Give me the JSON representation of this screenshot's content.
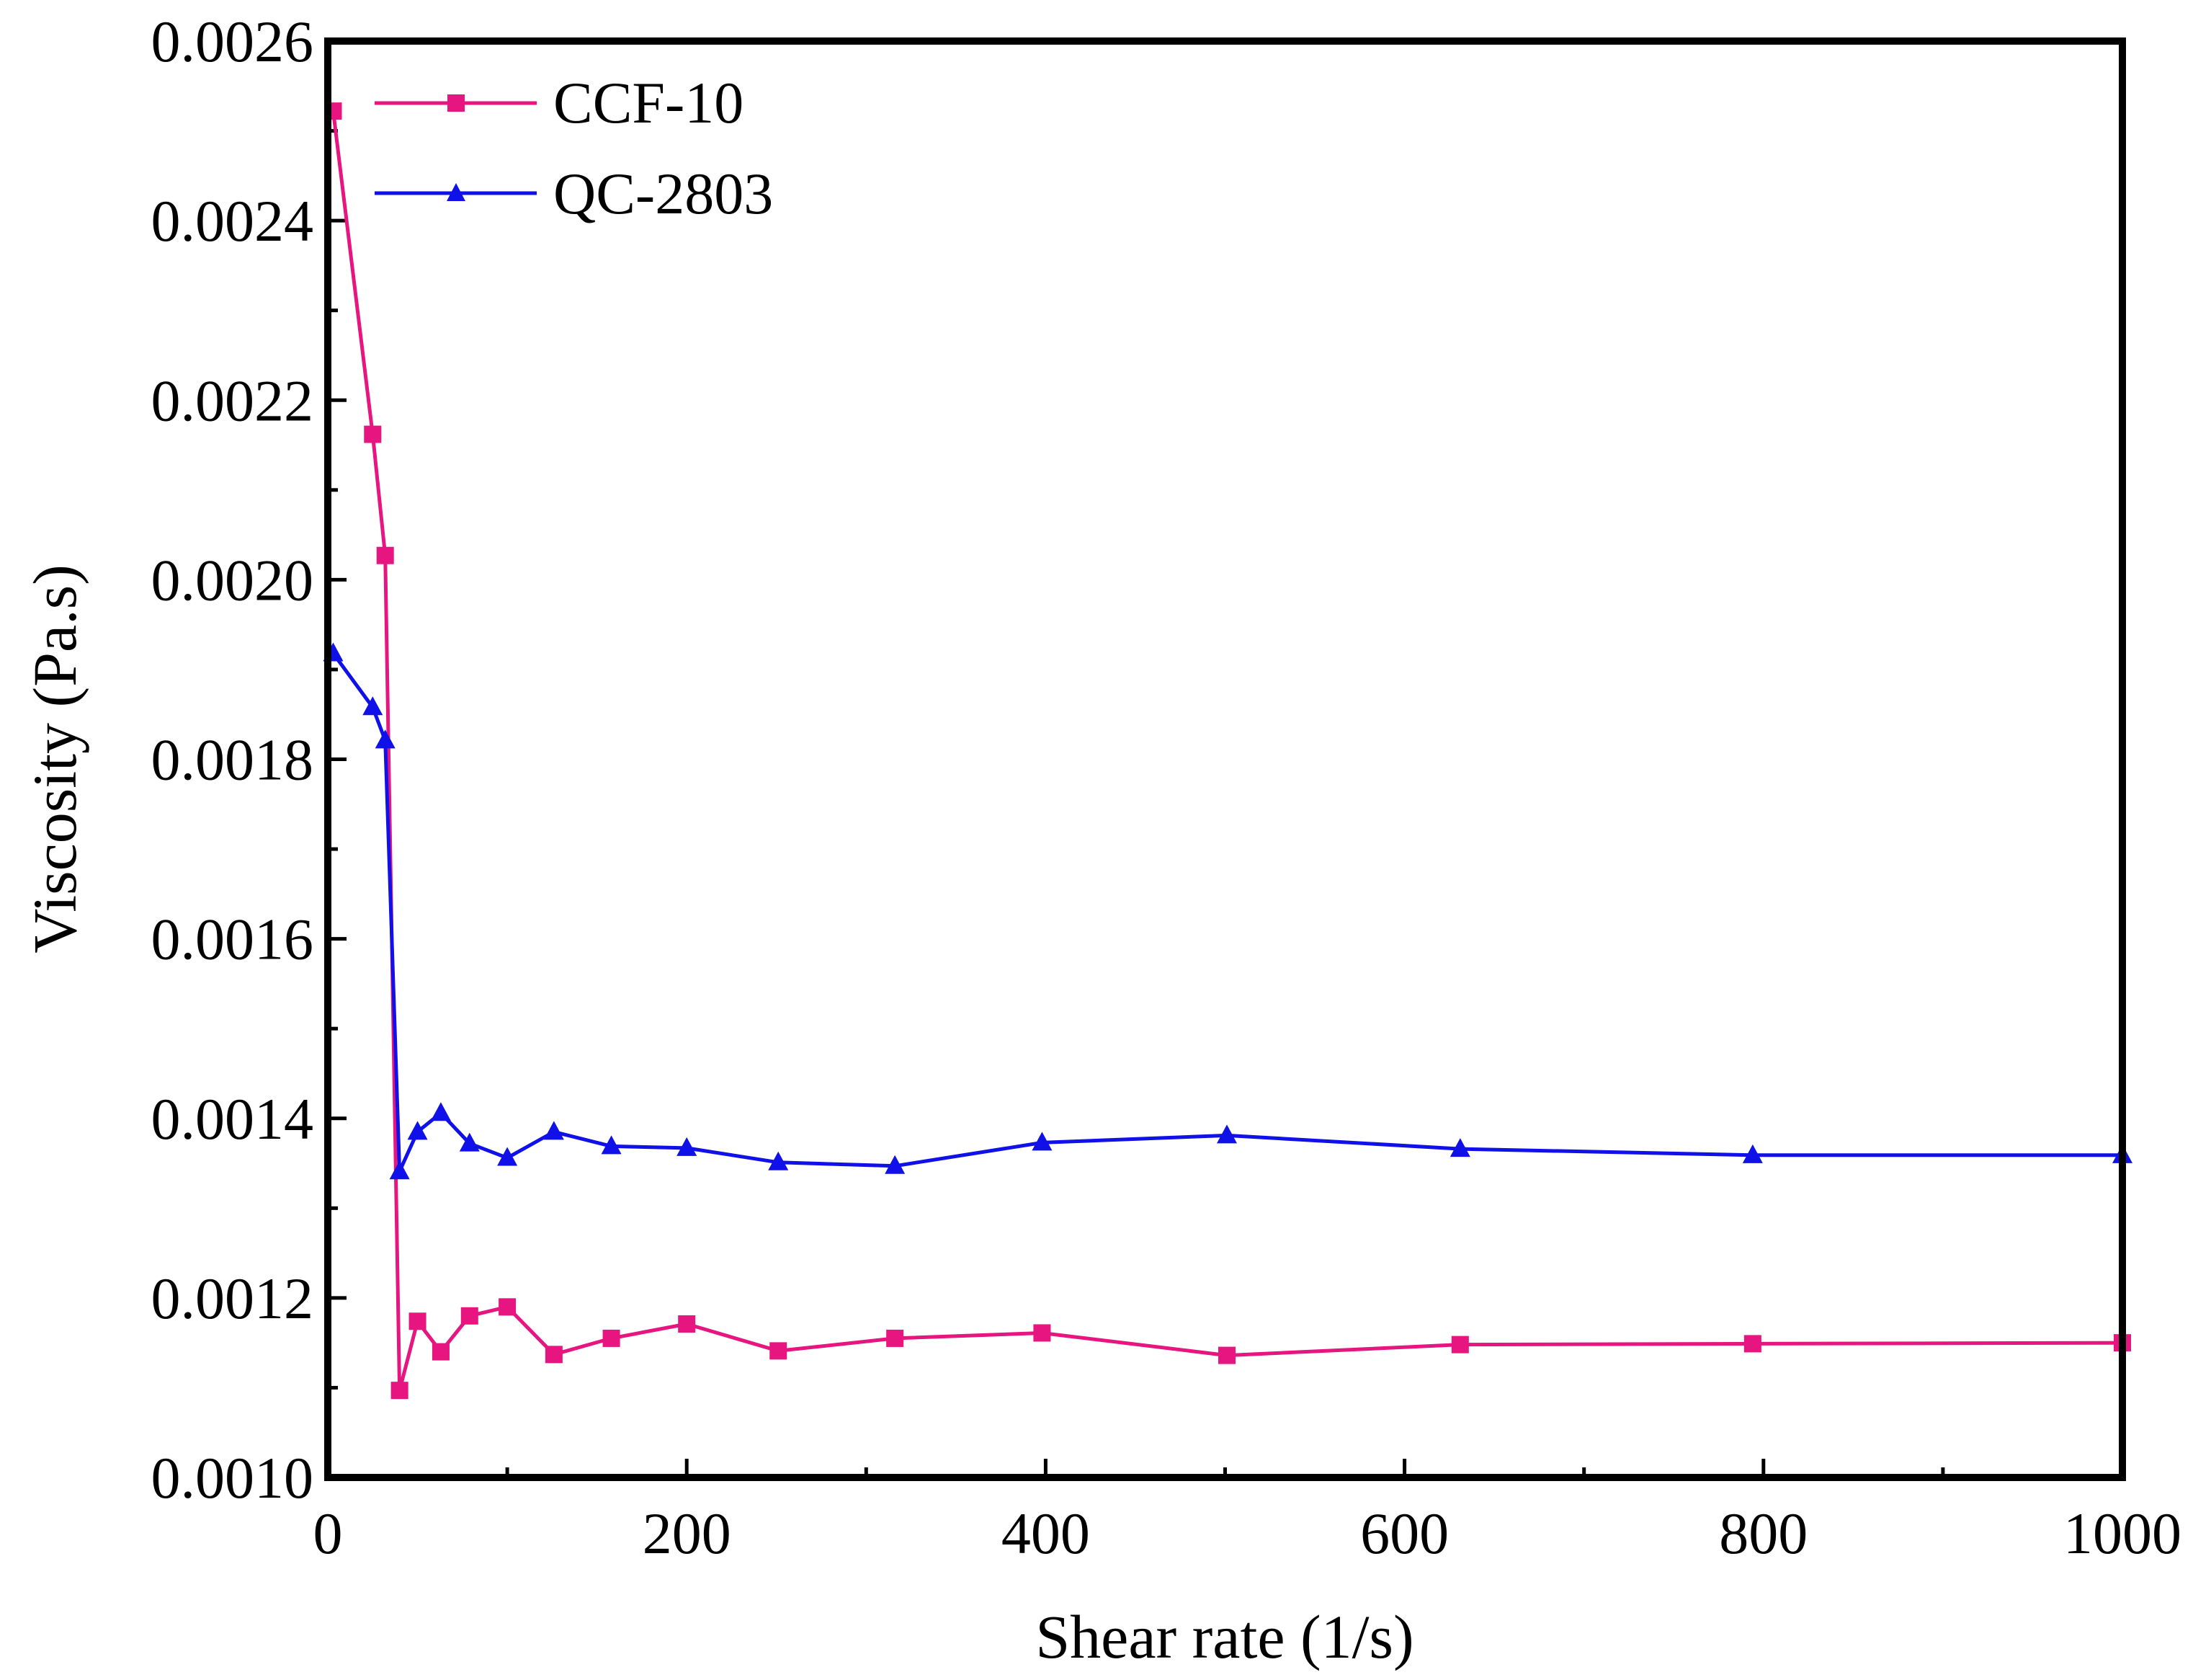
{
  "chart_data": {
    "type": "line",
    "title": "",
    "xlabel": "Shear rate (1/s)",
    "ylabel": "Viscosity (Pa.s)",
    "xlim": [
      0,
      1000
    ],
    "ylim": [
      0.001,
      0.0026
    ],
    "xticks": [
      0,
      200,
      400,
      600,
      800,
      1000
    ],
    "xtick_labels": [
      "0",
      "200",
      "400",
      "600",
      "800",
      "1000"
    ],
    "yticks": [
      0.001,
      0.0012,
      0.0014,
      0.0016,
      0.0018,
      0.002,
      0.0022,
      0.0024,
      0.0026
    ],
    "ytick_labels": [
      "0.0010",
      "0.0012",
      "0.0014",
      "0.0016",
      "0.0018",
      "0.0020",
      "0.0022",
      "0.0024",
      "0.0026"
    ],
    "grid": false,
    "legend_position": "top-left",
    "series": [
      {
        "name": "CCF-10",
        "color": "#e6157f",
        "marker": "square",
        "x": [
          3,
          25,
          32,
          40,
          50,
          63,
          79,
          100,
          126,
          158,
          200,
          251,
          316,
          398,
          501,
          631,
          794,
          1000
        ],
        "y": [
          0.002522,
          0.002162,
          0.002027,
          0.001097,
          0.001174,
          0.00114,
          0.00118,
          0.00119,
          0.001137,
          0.001155,
          0.001171,
          0.001141,
          0.001155,
          0.001161,
          0.001136,
          0.001148,
          0.001149,
          0.00115
        ]
      },
      {
        "name": "QC-2803",
        "color": "#1010e8",
        "marker": "triangle",
        "x": [
          3,
          25,
          32,
          40,
          50,
          63,
          79,
          100,
          126,
          158,
          200,
          251,
          316,
          398,
          501,
          631,
          794,
          1000
        ],
        "y": [
          0.001918,
          0.001858,
          0.001821,
          0.001341,
          0.001385,
          0.001406,
          0.001372,
          0.001356,
          0.001385,
          0.001369,
          0.001367,
          0.001351,
          0.001347,
          0.001373,
          0.001381,
          0.001366,
          0.001359,
          0.001359
        ]
      }
    ]
  }
}
